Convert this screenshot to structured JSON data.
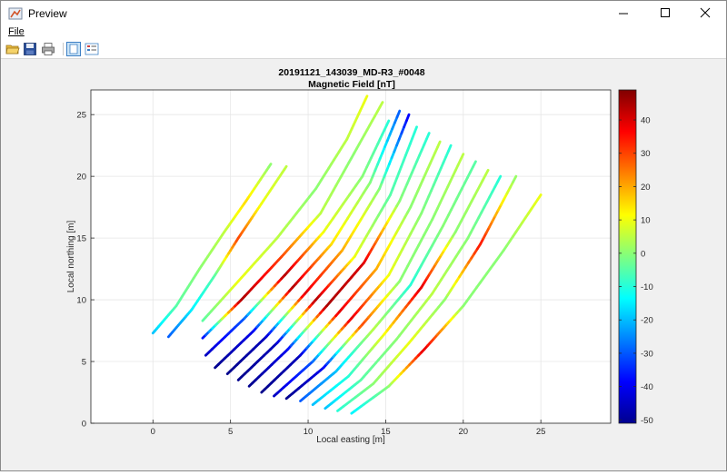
{
  "window": {
    "title": "Preview",
    "icon": "matlab-figure-icon"
  },
  "menu": {
    "file_label": "File"
  },
  "toolbar": {
    "icons": [
      "open-folder-icon",
      "save-icon",
      "print-icon",
      "toggle-plot-icon",
      "property-inspector-icon"
    ]
  },
  "chart_data": {
    "type": "line",
    "title": "20191121_143039_MD-R3_#0048",
    "subtitle": "Magnetic Field [nT]",
    "xlabel": "Local easting [m]",
    "ylabel": "Local northing [m]",
    "xlim": [
      -4,
      29.5
    ],
    "ylim": [
      0,
      27
    ],
    "xticks": [
      0,
      5,
      10,
      15,
      20,
      25
    ],
    "yticks": [
      0,
      5,
      10,
      15,
      20,
      25
    ],
    "grid": true,
    "colorbar": {
      "colormap": "jet",
      "range": [
        -51,
        49
      ],
      "ticks": [
        -50,
        -40,
        -30,
        -20,
        -10,
        0,
        10,
        20,
        30,
        40
      ]
    },
    "tracks": [
      {
        "x": [
          0,
          1.5,
          3.0,
          4.6,
          6.0,
          7.6
        ],
        "y": [
          7.3,
          9.5,
          12.5,
          15.5,
          18.0,
          21.0
        ],
        "v": [
          -20,
          -5,
          0,
          5,
          15,
          0
        ]
      },
      {
        "x": [
          1.0,
          2.5,
          4.0,
          5.5,
          7.0,
          8.6
        ],
        "y": [
          7.0,
          9.2,
          12.0,
          15.0,
          17.8,
          20.8
        ],
        "v": [
          -30,
          -15,
          -5,
          30,
          10,
          5
        ]
      },
      {
        "x": [
          3.2,
          5.5,
          8.0,
          10.5,
          12.5,
          13.8
        ],
        "y": [
          8.3,
          11.5,
          15.0,
          19.0,
          23.0,
          26.5
        ],
        "v": [
          -5,
          10,
          5,
          0,
          5,
          10
        ]
      },
      {
        "x": [
          3.2,
          5.7,
          8.3,
          10.8,
          12.8,
          14.8
        ],
        "y": [
          6.9,
          10.0,
          13.5,
          17.0,
          21.5,
          26.0
        ],
        "v": [
          -40,
          45,
          30,
          5,
          0,
          5
        ]
      },
      {
        "x": [
          3.4,
          5.9,
          8.5,
          11.0,
          13.5,
          15.2
        ],
        "y": [
          5.5,
          8.5,
          12.0,
          15.5,
          20.0,
          24.5
        ],
        "v": [
          -45,
          -30,
          45,
          10,
          0,
          -10
        ]
      },
      {
        "x": [
          4.0,
          6.5,
          9.0,
          11.5,
          14.0,
          15.9
        ],
        "y": [
          4.5,
          7.5,
          11.0,
          14.5,
          19.5,
          25.3
        ],
        "v": [
          -50,
          -40,
          45,
          15,
          0,
          -30
        ]
      },
      {
        "x": [
          4.8,
          7.3,
          9.8,
          12.2,
          14.6,
          16.5
        ],
        "y": [
          4.0,
          7.0,
          10.5,
          14.0,
          19.0,
          25.0
        ],
        "v": [
          -50,
          -45,
          40,
          20,
          0,
          -40
        ]
      },
      {
        "x": [
          5.5,
          8.0,
          10.5,
          13.0,
          15.3,
          17.0
        ],
        "y": [
          3.5,
          6.5,
          10.0,
          13.5,
          18.5,
          24.0
        ],
        "v": [
          -50,
          -45,
          45,
          10,
          -5,
          -10
        ]
      },
      {
        "x": [
          6.2,
          8.7,
          11.2,
          13.6,
          15.9,
          17.8
        ],
        "y": [
          3.0,
          6.0,
          9.5,
          13.0,
          18.0,
          23.5
        ],
        "v": [
          -50,
          -40,
          45,
          40,
          0,
          -10
        ]
      },
      {
        "x": [
          7.0,
          9.5,
          12.0,
          14.4,
          16.6,
          18.5
        ],
        "y": [
          2.5,
          5.5,
          9.0,
          12.5,
          17.5,
          22.8
        ],
        "v": [
          -50,
          -45,
          40,
          20,
          0,
          5
        ]
      },
      {
        "x": [
          7.8,
          10.3,
          12.8,
          15.2,
          17.3,
          19.2
        ],
        "y": [
          2.2,
          5.0,
          8.5,
          12.0,
          17.0,
          22.5
        ],
        "v": [
          -45,
          -30,
          40,
          10,
          0,
          -10
        ]
      },
      {
        "x": [
          8.6,
          11.0,
          13.5,
          15.9,
          18.0,
          20.0
        ],
        "y": [
          2.0,
          4.5,
          8.0,
          11.5,
          16.5,
          21.8
        ],
        "v": [
          -50,
          -40,
          30,
          0,
          0,
          5
        ]
      },
      {
        "x": [
          9.5,
          11.8,
          14.2,
          16.6,
          18.7,
          20.8
        ],
        "y": [
          1.8,
          4.2,
          7.6,
          11.2,
          16.0,
          21.2
        ],
        "v": [
          -30,
          -20,
          5,
          -10,
          0,
          -5
        ]
      },
      {
        "x": [
          10.3,
          12.6,
          14.9,
          17.3,
          19.5,
          21.6
        ],
        "y": [
          1.5,
          3.8,
          7.2,
          11.0,
          15.5,
          20.5
        ],
        "v": [
          -20,
          -10,
          10,
          40,
          0,
          5
        ]
      },
      {
        "x": [
          11.1,
          13.4,
          15.7,
          18.0,
          20.3,
          22.4
        ],
        "y": [
          1.2,
          3.5,
          6.8,
          10.5,
          15.0,
          20.0
        ],
        "v": [
          -20,
          -5,
          0,
          5,
          0,
          -10
        ]
      },
      {
        "x": [
          11.9,
          14.2,
          16.5,
          18.8,
          21.1,
          23.4
        ],
        "y": [
          1.0,
          3.2,
          6.5,
          10.0,
          14.5,
          20.0
        ],
        "v": [
          -10,
          0,
          10,
          0,
          35,
          0
        ]
      },
      {
        "x": [
          12.8,
          15.2,
          17.5,
          20.0,
          22.6,
          25.0
        ],
        "y": [
          0.8,
          3.0,
          6.0,
          9.5,
          14.0,
          18.5
        ],
        "v": [
          -15,
          0,
          40,
          0,
          0,
          10
        ]
      }
    ]
  }
}
